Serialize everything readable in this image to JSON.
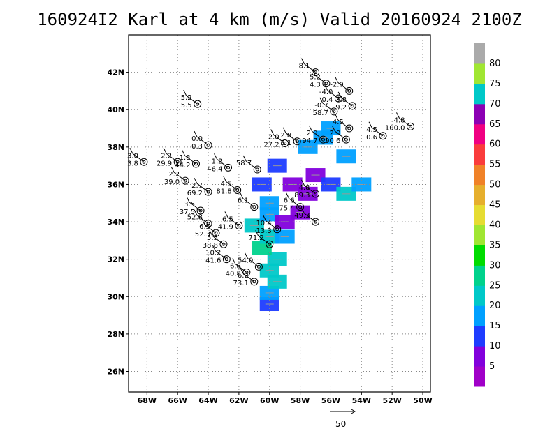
{
  "chart_data": {
    "type": "heatmap",
    "title": "160924I2 Karl at 4 km (m/s) Valid 20160924  2100Z",
    "x_ticks": [
      "68W",
      "66W",
      "64W",
      "62W",
      "60W",
      "58W",
      "56W",
      "54W",
      "52W",
      "50W"
    ],
    "y_ticks": [
      "26N",
      "28N",
      "30N",
      "32N",
      "34N",
      "36N",
      "38N",
      "40N",
      "42N"
    ],
    "xlim_deg_west": [
      69.2,
      49.5
    ],
    "ylim_deg_north": [
      24.9,
      44.0
    ],
    "grid": true,
    "colorbar": {
      "position": "right",
      "levels": [
        5,
        10,
        15,
        20,
        25,
        30,
        35,
        40,
        45,
        50,
        55,
        60,
        65,
        70,
        75,
        80
      ],
      "colors": [
        "#a000c8",
        "#8200dc",
        "#1e3cff",
        "#00a0ff",
        "#00c8c8",
        "#00d28c",
        "#00dc00",
        "#a0e632",
        "#e6dc32",
        "#e6af2d",
        "#f08228",
        "#fa3c3c",
        "#f00082",
        "#8c00b4",
        "#00c8c8",
        "#a0e632",
        "#aaaaaa"
      ]
    },
    "reference_vector": {
      "label": "50"
    },
    "wind_cells": [
      {
        "lon": -60.0,
        "lat": 29.6,
        "speed": 12
      },
      {
        "lon": -60.0,
        "lat": 30.2,
        "speed": 18
      },
      {
        "lon": -59.5,
        "lat": 30.8,
        "speed": 20
      },
      {
        "lon": -60.0,
        "lat": 31.4,
        "speed": 22
      },
      {
        "lon": -59.5,
        "lat": 32.0,
        "speed": 24
      },
      {
        "lon": -60.5,
        "lat": 32.6,
        "speed": 26
      },
      {
        "lon": -60.0,
        "lat": 33.2,
        "speed": 22
      },
      {
        "lon": -61.0,
        "lat": 33.8,
        "speed": 20
      },
      {
        "lon": -60.0,
        "lat": 34.4,
        "speed": 18
      },
      {
        "lon": -59.0,
        "lat": 34.0,
        "speed": 8
      },
      {
        "lon": -58.0,
        "lat": 34.5,
        "speed": 6
      },
      {
        "lon": -57.5,
        "lat": 35.5,
        "speed": 5
      },
      {
        "lon": -58.5,
        "lat": 36.0,
        "speed": 7
      },
      {
        "lon": -57.0,
        "lat": 36.5,
        "speed": 6
      },
      {
        "lon": -56.0,
        "lat": 36.0,
        "speed": 14
      },
      {
        "lon": -55.0,
        "lat": 35.5,
        "speed": 20
      },
      {
        "lon": -54.0,
        "lat": 36.0,
        "speed": 18
      },
      {
        "lon": -55.0,
        "lat": 37.5,
        "speed": 16
      },
      {
        "lon": -56.5,
        "lat": 38.5,
        "speed": 18
      },
      {
        "lon": -57.5,
        "lat": 38.0,
        "speed": 15
      },
      {
        "lon": -59.5,
        "lat": 37.0,
        "speed": 12
      },
      {
        "lon": -60.5,
        "lat": 36.0,
        "speed": 14
      },
      {
        "lon": -60.0,
        "lat": 35.0,
        "speed": 16
      },
      {
        "lon": -59.0,
        "lat": 33.2,
        "speed": 18
      },
      {
        "lon": -56.0,
        "lat": 39.0,
        "speed": 16
      }
    ],
    "observations": [
      {
        "lon": -57.0,
        "lat": 42.0,
        "labels": [
          "-8.1"
        ]
      },
      {
        "lon": -56.3,
        "lat": 41.4,
        "labels": [
          "5.2",
          "4.3"
        ]
      },
      {
        "lon": -54.8,
        "lat": 41.0,
        "labels": [
          "-2.0"
        ]
      },
      {
        "lon": -55.5,
        "lat": 40.6,
        "labels": [
          "-4.0",
          "0.4"
        ]
      },
      {
        "lon": -54.6,
        "lat": 40.2,
        "labels": [
          "3.8",
          "9.2"
        ]
      },
      {
        "lon": -55.8,
        "lat": 39.9,
        "labels": [
          "-0.7",
          "58.7"
        ]
      },
      {
        "lon": -54.8,
        "lat": 39.0,
        "labels": [
          "4.5"
        ]
      },
      {
        "lon": -50.8,
        "lat": 39.1,
        "labels": [
          "4.8",
          "100.0"
        ]
      },
      {
        "lon": -52.6,
        "lat": 38.6,
        "labels": [
          "4.5",
          "0.6"
        ]
      },
      {
        "lon": -55.0,
        "lat": 38.4,
        "labels": [
          "2.0",
          "90.6"
        ]
      },
      {
        "lon": -56.5,
        "lat": 38.4,
        "labels": [
          "2.0",
          "94.7"
        ]
      },
      {
        "lon": -58.2,
        "lat": 38.3,
        "labels": [
          "2.8",
          "3.1"
        ]
      },
      {
        "lon": -59.0,
        "lat": 38.2,
        "labels": [
          "2.0",
          "27.2"
        ]
      },
      {
        "lon": -64.7,
        "lat": 40.3,
        "labels": [
          "5.2",
          "5.5"
        ]
      },
      {
        "lon": -68.2,
        "lat": 37.2,
        "labels": [
          "3.0",
          "3.8"
        ]
      },
      {
        "lon": -66.0,
        "lat": 37.2,
        "labels": [
          "2.2",
          "29.9"
        ]
      },
      {
        "lon": -64.0,
        "lat": 38.1,
        "labels": [
          "0.0",
          "0.3"
        ]
      },
      {
        "lon": -64.8,
        "lat": 37.1,
        "labels": [
          "1.8",
          "44.2"
        ]
      },
      {
        "lon": -62.7,
        "lat": 36.9,
        "labels": [
          "1.2",
          "-46.4"
        ]
      },
      {
        "lon": -60.8,
        "lat": 36.8,
        "labels": [
          "58.7"
        ]
      },
      {
        "lon": -64.0,
        "lat": 35.6,
        "labels": [
          "2.7",
          "69.2"
        ]
      },
      {
        "lon": -65.5,
        "lat": 36.2,
        "labels": [
          "2.2",
          "39.0"
        ]
      },
      {
        "lon": -62.1,
        "lat": 35.7,
        "labels": [
          "4.5",
          "81.8"
        ]
      },
      {
        "lon": -61.0,
        "lat": 34.8,
        "labels": [
          "6.1"
        ]
      },
      {
        "lon": -64.5,
        "lat": 34.6,
        "labels": [
          "3.5",
          "37.5"
        ]
      },
      {
        "lon": -64.0,
        "lat": 33.9,
        "labels": [
          "52.8"
        ]
      },
      {
        "lon": -63.5,
        "lat": 33.4,
        "labels": [
          "6.5",
          "52.3"
        ]
      },
      {
        "lon": -62.0,
        "lat": 33.8,
        "labels": [
          "6.5",
          "41.9"
        ]
      },
      {
        "lon": -59.5,
        "lat": 33.6,
        "labels": [
          "10.4",
          "13.3"
        ]
      },
      {
        "lon": -57.0,
        "lat": 34.0,
        "labels": [
          "49.3"
        ]
      },
      {
        "lon": -58.0,
        "lat": 34.8,
        "labels": [
          "6.6",
          "75.4"
        ]
      },
      {
        "lon": -57.0,
        "lat": 35.5,
        "labels": [
          "4.8",
          "89.3"
        ]
      },
      {
        "lon": -63.0,
        "lat": 32.8,
        "labels": [
          "5.5",
          "38.8"
        ]
      },
      {
        "lon": -62.8,
        "lat": 32.0,
        "labels": [
          "10.2",
          "41.6"
        ]
      },
      {
        "lon": -61.5,
        "lat": 31.3,
        "labels": [
          "6.8",
          "40.8"
        ]
      },
      {
        "lon": -60.7,
        "lat": 31.6,
        "labels": [
          "54.0"
        ]
      },
      {
        "lon": -61.0,
        "lat": 30.8,
        "labels": [
          "6.2",
          "73.1"
        ]
      },
      {
        "lon": -60.0,
        "lat": 32.8,
        "labels": [
          "71.2"
        ]
      }
    ]
  }
}
